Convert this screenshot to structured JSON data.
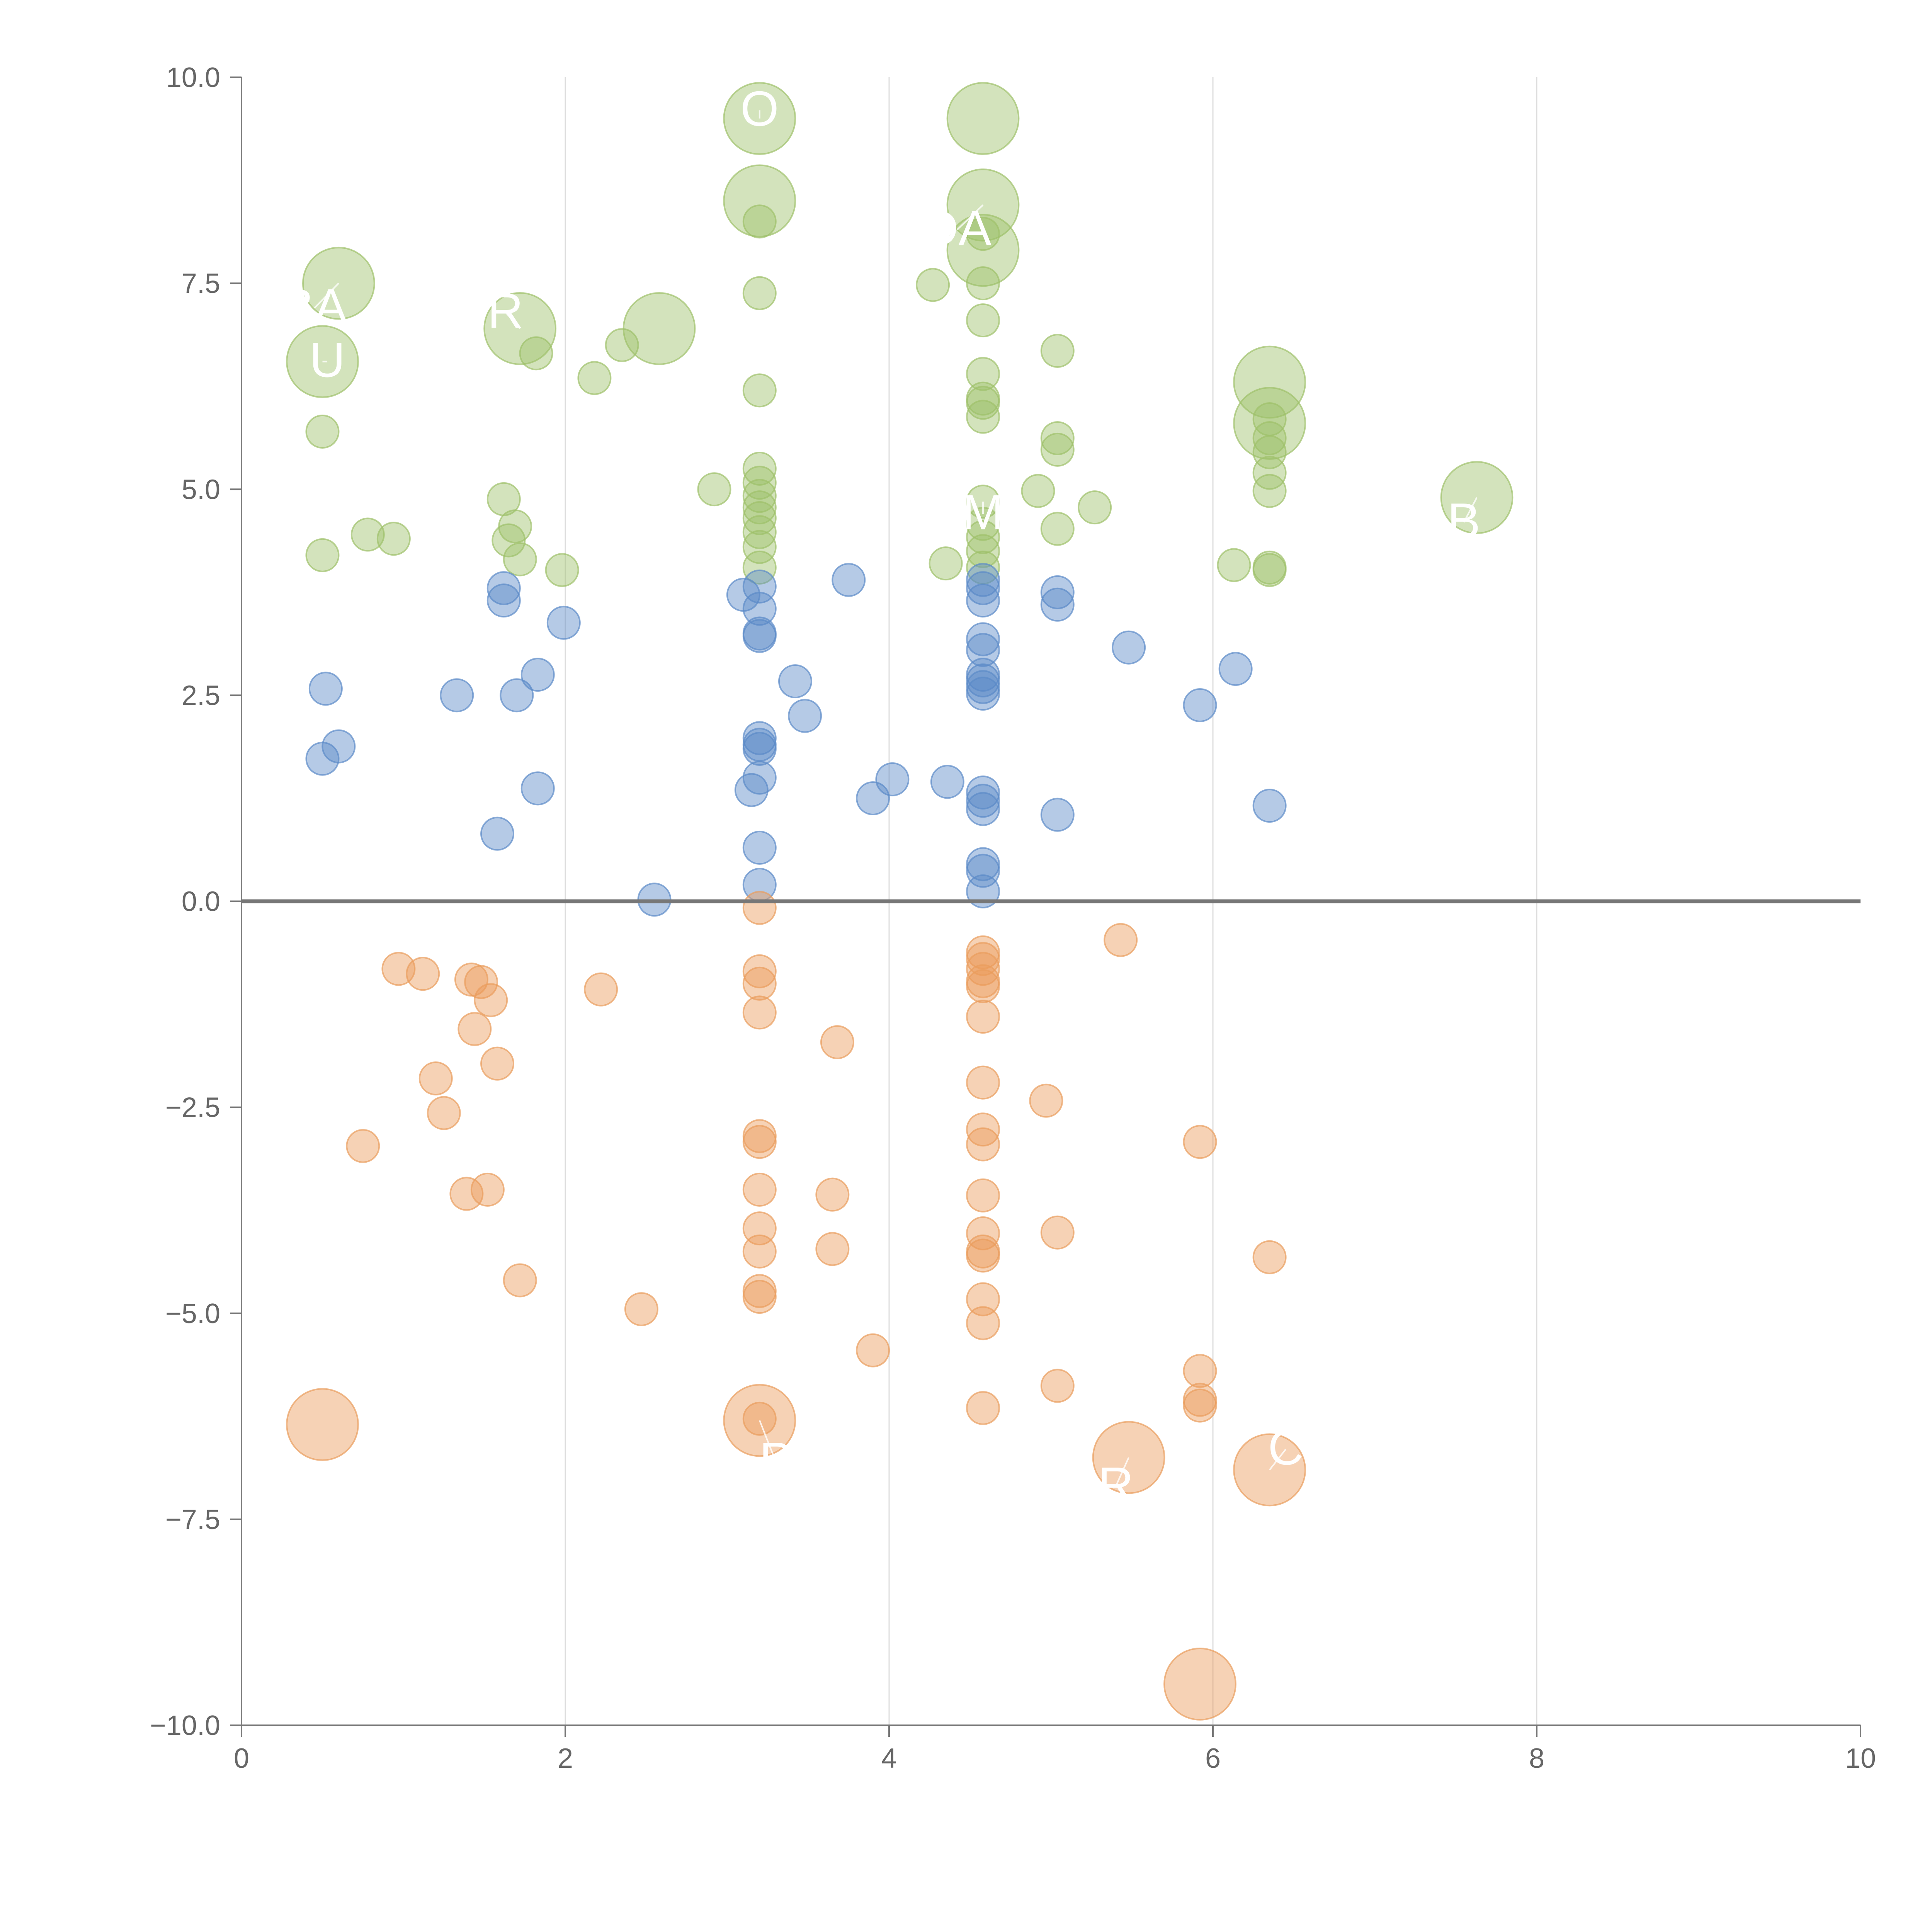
{
  "chart_data": {
    "type": "scatter",
    "title": "",
    "xlabel": "",
    "ylabel": "",
    "xlim": [
      0,
      10
    ],
    "ylim": [
      -10,
      10
    ],
    "x_ticks": [
      "0",
      "2",
      "4",
      "6",
      "8",
      "10"
    ],
    "y_ticks": [
      "10.0",
      "7.5",
      "5.0",
      "2.5",
      "0.0",
      "−2.5",
      "−5.0",
      "−7.5",
      "−10.0"
    ],
    "x_grid": true,
    "y_grid": false,
    "zero_line": true,
    "legend": "none",
    "colors": {
      "positive_high": "#9ec16a",
      "positive_low": "#5b8ac8",
      "negative": "#ea9c5c"
    },
    "series": [
      {
        "color_key": "positive_high",
        "points": [
          [
            0.6,
            7.5,
            2.2
          ],
          [
            0.5,
            6.55,
            2.2
          ],
          [
            0.5,
            5.7,
            1
          ],
          [
            0.5,
            4.2,
            1
          ],
          [
            0.78,
            4.45,
            1
          ],
          [
            0.94,
            4.4,
            1
          ],
          [
            1.62,
            4.88,
            1
          ],
          [
            1.65,
            4.38,
            1
          ],
          [
            1.69,
            4.55,
            1
          ],
          [
            1.72,
            4.15,
            1
          ],
          [
            1.82,
            6.65,
            1
          ],
          [
            1.72,
            6.95,
            2.2
          ],
          [
            1.98,
            4.02,
            1
          ],
          [
            2.18,
            6.35,
            1
          ],
          [
            2.35,
            6.75,
            1
          ],
          [
            2.58,
            6.95,
            2.2
          ],
          [
            2.92,
            5.0,
            1
          ],
          [
            3.2,
            9.5,
            2.2
          ],
          [
            3.2,
            8.5,
            2.2
          ],
          [
            3.2,
            8.25,
            1
          ],
          [
            3.2,
            7.38,
            1
          ],
          [
            3.2,
            6.2,
            1
          ],
          [
            3.2,
            5.25,
            1
          ],
          [
            3.2,
            5.08,
            1
          ],
          [
            3.2,
            4.92,
            1
          ],
          [
            3.2,
            4.78,
            1
          ],
          [
            3.2,
            4.65,
            1
          ],
          [
            3.2,
            4.48,
            1
          ],
          [
            3.2,
            4.3,
            1
          ],
          [
            3.2,
            4.05,
            1
          ],
          [
            4.58,
            9.5,
            2.2
          ],
          [
            4.58,
            8.45,
            2.2
          ],
          [
            4.58,
            7.9,
            2.2
          ],
          [
            4.58,
            8.1,
            1
          ],
          [
            4.58,
            7.5,
            1
          ],
          [
            4.58,
            7.05,
            1
          ],
          [
            4.58,
            6.4,
            1
          ],
          [
            4.58,
            6.1,
            1
          ],
          [
            4.58,
            6.05,
            1
          ],
          [
            4.58,
            5.88,
            1
          ],
          [
            4.58,
            4.85,
            1
          ],
          [
            4.58,
            4.58,
            1
          ],
          [
            4.58,
            4.42,
            1
          ],
          [
            4.58,
            4.25,
            1
          ],
          [
            4.58,
            4.05,
            1
          ],
          [
            4.27,
            7.48,
            1
          ],
          [
            4.35,
            4.1,
            1
          ],
          [
            4.92,
            4.98,
            1
          ],
          [
            5.04,
            6.68,
            1
          ],
          [
            5.04,
            5.62,
            1
          ],
          [
            5.04,
            5.48,
            1
          ],
          [
            5.04,
            4.52,
            1
          ],
          [
            5.27,
            4.78,
            1
          ],
          [
            6.13,
            4.08,
            1
          ],
          [
            6.35,
            6.3,
            2.2
          ],
          [
            6.35,
            5.8,
            2.2
          ],
          [
            6.35,
            5.85,
            1
          ],
          [
            6.35,
            5.62,
            1
          ],
          [
            6.35,
            5.45,
            1
          ],
          [
            6.35,
            5.2,
            1
          ],
          [
            6.35,
            4.98,
            1
          ],
          [
            6.35,
            4.05,
            1
          ],
          [
            6.35,
            4.02,
            1
          ],
          [
            7.63,
            4.9,
            2.2
          ]
        ]
      },
      {
        "color_key": "positive_low",
        "points": [
          [
            0.52,
            2.58,
            1
          ],
          [
            0.5,
            1.73,
            1
          ],
          [
            0.6,
            1.88,
            1
          ],
          [
            1.33,
            2.5,
            1
          ],
          [
            1.58,
            0.82,
            1
          ],
          [
            1.62,
            3.8,
            1
          ],
          [
            1.62,
            3.65,
            1
          ],
          [
            1.7,
            2.5,
            1
          ],
          [
            1.83,
            2.75,
            1
          ],
          [
            1.83,
            1.37,
            1
          ],
          [
            1.99,
            3.38,
            1
          ],
          [
            2.55,
            0.02,
            1
          ],
          [
            3.1,
            3.72,
            1
          ],
          [
            3.15,
            1.35,
            1
          ],
          [
            3.2,
            3.82,
            1
          ],
          [
            3.2,
            3.55,
            1
          ],
          [
            3.2,
            3.25,
            1
          ],
          [
            3.2,
            3.22,
            1
          ],
          [
            3.2,
            1.98,
            1
          ],
          [
            3.2,
            1.9,
            1
          ],
          [
            3.2,
            1.85,
            1
          ],
          [
            3.2,
            1.5,
            1
          ],
          [
            3.2,
            0.65,
            1
          ],
          [
            3.2,
            0.2,
            1
          ],
          [
            3.42,
            2.67,
            1
          ],
          [
            3.48,
            2.25,
            1
          ],
          [
            3.75,
            3.9,
            1
          ],
          [
            3.9,
            1.25,
            1
          ],
          [
            4.02,
            1.48,
            1
          ],
          [
            4.36,
            1.45,
            1
          ],
          [
            4.58,
            3.9,
            1
          ],
          [
            4.58,
            3.8,
            1
          ],
          [
            4.58,
            3.65,
            1
          ],
          [
            4.58,
            3.18,
            1
          ],
          [
            4.58,
            3.05,
            1
          ],
          [
            4.58,
            2.75,
            1
          ],
          [
            4.58,
            2.68,
            1
          ],
          [
            4.58,
            2.6,
            1
          ],
          [
            4.58,
            2.52,
            1
          ],
          [
            4.58,
            1.32,
            1
          ],
          [
            4.58,
            1.22,
            1
          ],
          [
            4.58,
            1.12,
            1
          ],
          [
            4.58,
            0.45,
            1
          ],
          [
            4.58,
            0.37,
            1
          ],
          [
            4.58,
            0.12,
            1
          ],
          [
            5.04,
            3.75,
            1
          ],
          [
            5.04,
            3.6,
            1
          ],
          [
            5.04,
            1.05,
            1
          ],
          [
            5.48,
            3.08,
            1
          ],
          [
            5.92,
            2.38,
            1
          ],
          [
            6.14,
            2.82,
            1
          ],
          [
            6.35,
            1.16,
            1
          ]
        ]
      },
      {
        "color_key": "negative",
        "points": [
          [
            0.5,
            -6.35,
            2.2
          ],
          [
            0.75,
            -2.97,
            1
          ],
          [
            0.97,
            -0.82,
            1
          ],
          [
            1.12,
            -0.88,
            1
          ],
          [
            1.2,
            -2.15,
            1
          ],
          [
            1.25,
            -2.57,
            1
          ],
          [
            1.39,
            -3.55,
            1
          ],
          [
            1.42,
            -0.95,
            1
          ],
          [
            1.44,
            -1.55,
            1
          ],
          [
            1.48,
            -0.98,
            1
          ],
          [
            1.52,
            -3.5,
            1
          ],
          [
            1.54,
            -1.2,
            1
          ],
          [
            1.58,
            -1.97,
            1
          ],
          [
            1.72,
            -4.6,
            1
          ],
          [
            2.22,
            -1.07,
            1
          ],
          [
            2.47,
            -4.95,
            1
          ],
          [
            3.2,
            -6.3,
            2.2
          ],
          [
            3.2,
            -6.28,
            1
          ],
          [
            3.2,
            -0.08,
            1
          ],
          [
            3.2,
            -0.85,
            1
          ],
          [
            3.2,
            -1.0,
            1
          ],
          [
            3.2,
            -1.35,
            1
          ],
          [
            3.2,
            -2.85,
            1
          ],
          [
            3.2,
            -2.92,
            1
          ],
          [
            3.2,
            -3.5,
            1
          ],
          [
            3.2,
            -3.97,
            1
          ],
          [
            3.2,
            -4.25,
            1
          ],
          [
            3.2,
            -4.73,
            1
          ],
          [
            3.2,
            -4.8,
            1
          ],
          [
            3.65,
            -3.56,
            1
          ],
          [
            3.65,
            -4.22,
            1
          ],
          [
            3.68,
            -1.71,
            1
          ],
          [
            3.9,
            -5.45,
            1
          ],
          [
            4.58,
            -0.62,
            1
          ],
          [
            4.58,
            -0.7,
            1
          ],
          [
            4.58,
            -0.82,
            1
          ],
          [
            4.58,
            -0.97,
            1
          ],
          [
            4.58,
            -1.03,
            1
          ],
          [
            4.58,
            -1.4,
            1
          ],
          [
            4.58,
            -2.2,
            1
          ],
          [
            4.58,
            -2.77,
            1
          ],
          [
            4.58,
            -2.95,
            1
          ],
          [
            4.58,
            -3.57,
            1
          ],
          [
            4.58,
            -4.03,
            1
          ],
          [
            4.58,
            -4.25,
            1
          ],
          [
            4.58,
            -4.3,
            1
          ],
          [
            4.58,
            -4.83,
            1
          ],
          [
            4.58,
            -5.12,
            1
          ],
          [
            4.58,
            -6.15,
            1
          ],
          [
            4.97,
            -2.42,
            1
          ],
          [
            5.04,
            -4.02,
            1
          ],
          [
            5.04,
            -5.88,
            1
          ],
          [
            5.43,
            -0.47,
            1
          ],
          [
            5.48,
            -6.75,
            2.2
          ],
          [
            5.92,
            -2.92,
            1
          ],
          [
            5.92,
            -5.7,
            1
          ],
          [
            5.92,
            -6.05,
            1
          ],
          [
            5.92,
            -6.12,
            1
          ],
          [
            5.92,
            -9.5,
            2.2
          ],
          [
            6.35,
            -4.32,
            1
          ],
          [
            6.35,
            -6.9,
            2.2
          ]
        ]
      }
    ],
    "labels": [
      {
        "text": "BA",
        "x": 0.45,
        "y": 7.2,
        "anchor_x": 0.6,
        "anchor_y": 7.5
      },
      {
        "text": "U",
        "x": 0.53,
        "y": 6.55,
        "anchor_x": 0.5,
        "anchor_y": 6.55
      },
      {
        "text": "R",
        "x": 1.63,
        "y": 7.15,
        "anchor_x": 1.72,
        "anchor_y": 6.95
      },
      {
        "text": "O",
        "x": 3.2,
        "y": 9.6,
        "anchor_x": 3.2,
        "anchor_y": 9.5
      },
      {
        "text": "DA",
        "x": 4.42,
        "y": 8.15,
        "anchor_x": 4.58,
        "anchor_y": 8.45
      },
      {
        "text": "M",
        "x": 4.58,
        "y": 4.7,
        "anchor_x": 4.58,
        "anchor_y": 4.85
      },
      {
        "text": "B",
        "x": 7.55,
        "y": 4.6,
        "anchor_x": 7.63,
        "anchor_y": 4.9
      },
      {
        "text": "P",
        "x": 3.3,
        "y": -6.8,
        "anchor_x": 3.2,
        "anchor_y": -6.3
      },
      {
        "text": "R",
        "x": 5.4,
        "y": -7.1,
        "anchor_x": 5.48,
        "anchor_y": -6.75
      },
      {
        "text": "C",
        "x": 6.45,
        "y": -6.65,
        "anchor_x": 6.35,
        "anchor_y": -6.9
      }
    ]
  }
}
